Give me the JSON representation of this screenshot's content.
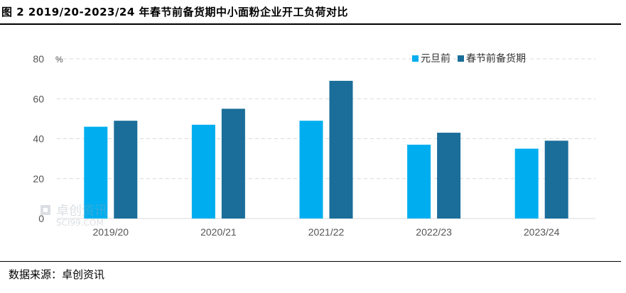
{
  "title": "图 2 2019/20-2023/24 年春节前备货期中小面粉企业开工负荷对比",
  "source": "数据来源：卓创资讯",
  "watermark": {
    "brand": "卓创资讯",
    "site": "SCI99.COM"
  },
  "colors": {
    "series_light": "#00AEEF",
    "series_dark": "#1A6E99",
    "grid": "#d9d9d9"
  },
  "chart_data": {
    "type": "bar",
    "categories": [
      "2019/20",
      "2020/21",
      "2021/22",
      "2022/23",
      "2023/24"
    ],
    "series": [
      {
        "name": "元旦前",
        "values": [
          46,
          47,
          49,
          37,
          35
        ]
      },
      {
        "name": "春节前备货期",
        "values": [
          49,
          55,
          69,
          43,
          39
        ]
      }
    ],
    "ylim": [
      0,
      80
    ],
    "yticks": [
      0,
      20,
      40,
      60,
      80
    ],
    "ylabel": "%",
    "grid": true,
    "legend_position": "top-right"
  }
}
